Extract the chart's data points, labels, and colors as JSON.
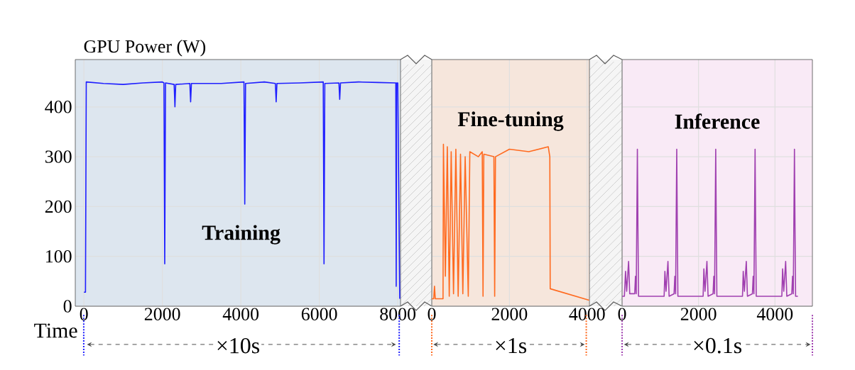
{
  "chart_data": [
    {
      "type": "line",
      "ylabel": "GPU Power (W)",
      "xlabel": "Time",
      "annotations": [
        "Training",
        "×10s"
      ],
      "xlim": [
        -220,
        8070
      ],
      "ylim": [
        0,
        495
      ],
      "xticks": [
        0,
        2000,
        4000,
        6000,
        8000
      ],
      "yticks": [
        0,
        100,
        200,
        300,
        400
      ],
      "grid": true,
      "series": [
        {
          "color": "#1f1fff",
          "x": [
            0,
            40,
            60,
            500,
            1000,
            1500,
            2000,
            2040,
            2060,
            2080,
            2300,
            2320,
            2340,
            2700,
            2720,
            2740,
            3500,
            4080,
            4100,
            4120,
            4600,
            4880,
            4900,
            4920,
            5500,
            6100,
            6120,
            6140,
            6500,
            6520,
            6540,
            7000,
            7500,
            7950,
            7960,
            7970,
            8000,
            8050
          ],
          "values": [
            28,
            28,
            450,
            447,
            445,
            448,
            450,
            448,
            85,
            448,
            445,
            400,
            445,
            447,
            410,
            447,
            447,
            450,
            205,
            447,
            450,
            447,
            410,
            447,
            448,
            450,
            85,
            447,
            448,
            415,
            448,
            450,
            449,
            448,
            40,
            448,
            448,
            15
          ]
        }
      ]
    },
    {
      "type": "line",
      "annotations": [
        "Fine-tuning",
        "×1s"
      ],
      "xlim": [
        0,
        4060
      ],
      "ylim": [
        0,
        495
      ],
      "xticks": [
        0,
        2000,
        4000
      ],
      "yticks": [
        0,
        100,
        200,
        300,
        400
      ],
      "grid": true,
      "tick_labels": "x",
      "series": [
        {
          "color": "#ff6a1f",
          "x": [
            0,
            50,
            70,
            90,
            290,
            300,
            350,
            400,
            450,
            500,
            560,
            620,
            680,
            740,
            800,
            860,
            940,
            980,
            1200,
            1300,
            1320,
            1340,
            1600,
            1620,
            1640,
            2000,
            2500,
            3000,
            3040,
            3050,
            4050
          ],
          "values": [
            15,
            15,
            40,
            15,
            15,
            325,
            60,
            320,
            20,
            310,
            25,
            315,
            20,
            305,
            25,
            300,
            20,
            310,
            300,
            310,
            20,
            305,
            300,
            20,
            300,
            315,
            310,
            320,
            300,
            35,
            12
          ]
        }
      ]
    },
    {
      "type": "line",
      "annotations": [
        "Inference",
        "×0.1s"
      ],
      "xlim": [
        0,
        4980
      ],
      "ylim": [
        0,
        495
      ],
      "xticks": [
        0,
        2000,
        4000
      ],
      "yticks": [
        0,
        100,
        200,
        300,
        400
      ],
      "grid": true,
      "tick_labels": "x",
      "series": [
        {
          "color": "#a040b0",
          "x": [
            0,
            60,
            90,
            120,
            170,
            200,
            330,
            350,
            370,
            400,
            415,
            430,
            1100,
            1120,
            1150,
            1200,
            1230,
            1360,
            1380,
            1400,
            1430,
            1445,
            1460,
            2120,
            2140,
            2170,
            2220,
            2250,
            2380,
            2400,
            2420,
            2450,
            2465,
            2480,
            3150,
            3170,
            3200,
            3250,
            3280,
            3410,
            3430,
            3450,
            3480,
            3495,
            3510,
            4180,
            4200,
            4230,
            4280,
            4310,
            4440,
            4460,
            4480,
            4510,
            4525,
            4540,
            4600
          ],
          "values": [
            20,
            20,
            70,
            30,
            90,
            25,
            25,
            60,
            25,
            315,
            157,
            20,
            20,
            70,
            30,
            90,
            20,
            25,
            60,
            25,
            315,
            157,
            20,
            20,
            75,
            30,
            90,
            20,
            25,
            60,
            25,
            315,
            157,
            20,
            20,
            70,
            30,
            90,
            20,
            25,
            60,
            25,
            315,
            157,
            20,
            20,
            75,
            30,
            90,
            20,
            25,
            60,
            25,
            315,
            157,
            20,
            20
          ]
        }
      ]
    }
  ]
}
